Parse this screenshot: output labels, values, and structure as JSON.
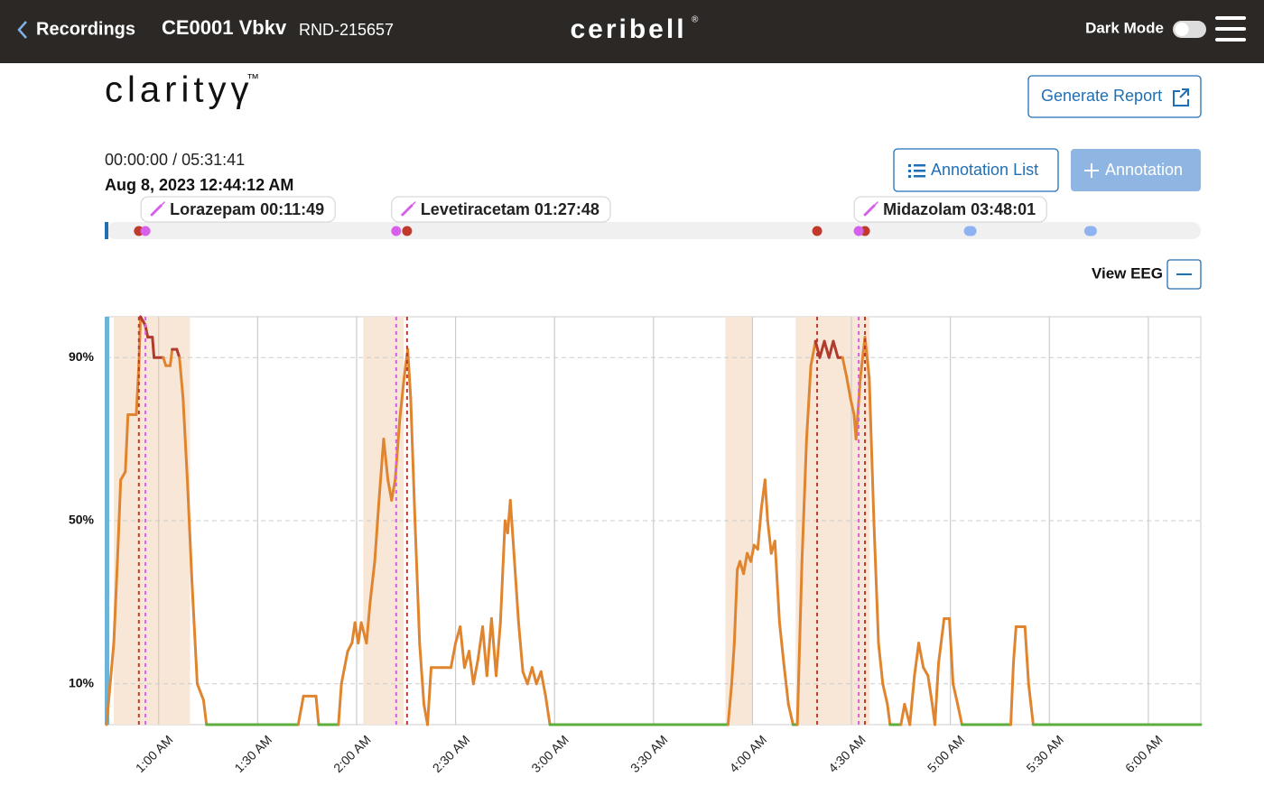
{
  "header": {
    "back": "Recordings",
    "patient": "CE0001 Vbkv",
    "recording_id": "RND-215657",
    "logo": "ceribell",
    "logo_mark": "®",
    "dark_mode": "Dark Mode"
  },
  "brand": {
    "name": "clarityγ",
    "mark": "™"
  },
  "buttons": {
    "generate_report": "Generate Report",
    "annotation_list": "Annotation List",
    "add_annotation": "Annotation",
    "view_eeg": "View EEG"
  },
  "playback": {
    "time": "00:00:00 / 05:31:41",
    "date": "Aug 8, 2023 12:44:12 AM"
  },
  "chart_data": {
    "type": "line",
    "x": [
      44.2,
      45.3,
      46.4,
      47.5,
      48.5,
      49.9,
      50.7,
      53.2,
      54.0,
      54.5,
      55.9,
      56.7,
      58.1,
      58.6,
      61.4,
      62.2,
      63.5,
      64.1,
      65.5,
      66.3,
      67.4,
      68.7,
      70.1,
      71.7,
      73.6,
      74.5,
      102.3,
      103.9,
      107.7,
      108.5,
      114.5,
      115.4,
      117.3,
      118.6,
      119.5,
      120.5,
      121.4,
      123.0,
      124.1,
      125.5,
      126.8,
      128.2,
      129.5,
      130.6,
      131.7,
      133.1,
      134.4,
      135.5,
      136.4,
      137.7,
      139.1,
      140.4,
      141.5,
      142.6,
      145.9,
      148.6,
      150.0,
      151.4,
      152.7,
      154.1,
      155.4,
      156.8,
      158.2,
      159.5,
      160.9,
      162.3,
      163.6,
      165.0,
      165.8,
      166.6,
      167.7,
      169.1,
      170.4,
      171.8,
      173.2,
      174.5,
      175.9,
      177.3,
      178.6,
      232.6,
      233.7,
      234.5,
      235.4,
      236.2,
      237.3,
      238.4,
      239.5,
      240.5,
      241.6,
      242.7,
      243.8,
      244.6,
      245.7,
      246.8,
      248.2,
      249.5,
      250.9,
      252.3,
      253.6,
      255.0,
      256.4,
      257.7,
      259.1,
      260.4,
      261.8,
      263.2,
      264.5,
      265.9,
      267.3,
      268.6,
      269.7,
      270.8,
      271.4,
      272.7,
      274.1,
      275.4,
      276.8,
      278.2,
      279.5,
      280.9,
      281.7,
      285.0,
      286.1,
      287.7,
      289.1,
      290.4,
      291.8,
      293.2,
      294.5,
      295.3,
      296.4,
      298.1,
      299.7,
      300.8,
      302.2,
      303.5,
      318.3,
      319.1,
      319.9,
      322.6,
      323.7,
      325.1,
      375.9
    ],
    "series": [
      {
        "color": "#e0852f",
        "zero_color": "#5cae3d",
        "high_color": "#b03a2e",
        "values": [
          0,
          10,
          20,
          40,
          60,
          62,
          76,
          76,
          88,
          100,
          98,
          95,
          95,
          90,
          90,
          88,
          88,
          92,
          92,
          90,
          80,
          60,
          35,
          10,
          6,
          0,
          0,
          7,
          7,
          0,
          0,
          10,
          18,
          20,
          25,
          20,
          25,
          20,
          30,
          40,
          55,
          70,
          60,
          55,
          60,
          75,
          85,
          92,
          80,
          50,
          20,
          5,
          0,
          14,
          14,
          14,
          20,
          24,
          14,
          18,
          10,
          16,
          24,
          12,
          26,
          12,
          25,
          50,
          47,
          55,
          42,
          25,
          13,
          10,
          14,
          10,
          13,
          7,
          0,
          0,
          10,
          20,
          38,
          40,
          37,
          42,
          40,
          44,
          43,
          53,
          60,
          50,
          42,
          45,
          25,
          15,
          5,
          0,
          0,
          40,
          70,
          88,
          94,
          90,
          94,
          90,
          94,
          90,
          90,
          85,
          80,
          76,
          70,
          85,
          95,
          85,
          50,
          20,
          10,
          5,
          0,
          0,
          5,
          0,
          12,
          20,
          14,
          12,
          5,
          0,
          15,
          26,
          26,
          10,
          5,
          0,
          0,
          15,
          24,
          24,
          10,
          0,
          0
        ]
      }
    ],
    "xlim": [
      44.2,
      375.9
    ],
    "xticks": [
      {
        "value": 60,
        "label": "1:00 AM"
      },
      {
        "value": 90,
        "label": "1:30 AM"
      },
      {
        "value": 120,
        "label": "2:00 AM"
      },
      {
        "value": 150,
        "label": "2:30 AM"
      },
      {
        "value": 180,
        "label": "3:00 AM"
      },
      {
        "value": 210,
        "label": "3:30 AM"
      },
      {
        "value": 240,
        "label": "4:00 AM"
      },
      {
        "value": 270,
        "label": "4:30 AM"
      },
      {
        "value": 300,
        "label": "5:00 AM"
      },
      {
        "value": 330,
        "label": "5:30 AM"
      },
      {
        "value": 360,
        "label": "6:00 AM"
      }
    ],
    "ylim": [
      0,
      100
    ],
    "yticks": [
      {
        "value": 10,
        "label": "10%"
      },
      {
        "value": 50,
        "label": "50%"
      },
      {
        "value": 90,
        "label": "90%"
      }
    ],
    "grid": true,
    "shaded_ranges": {
      "color": "#f8e6d6",
      "ranges": [
        [
          46.4,
          69.5
        ],
        [
          122.0,
          134.3
        ],
        [
          231.8,
          240.0
        ],
        [
          253.1,
          275.5
        ]
      ]
    },
    "medications": {
      "color": "#d660ea",
      "items": [
        {
          "label": "Lorazepam 00:11:49",
          "x": 56.0
        },
        {
          "label": "Levetiracetam 01:27:48",
          "x": 132.0
        },
        {
          "label": "Midazolam 03:48:01",
          "x": 272.2
        }
      ]
    },
    "seizures": {
      "color": "#c0392b",
      "x": [
        54.0,
        135.3,
        259.6,
        274.1
      ]
    },
    "notes": {
      "color": "#8fb3f0",
      "x": [
        306.0,
        342.5
      ]
    }
  }
}
